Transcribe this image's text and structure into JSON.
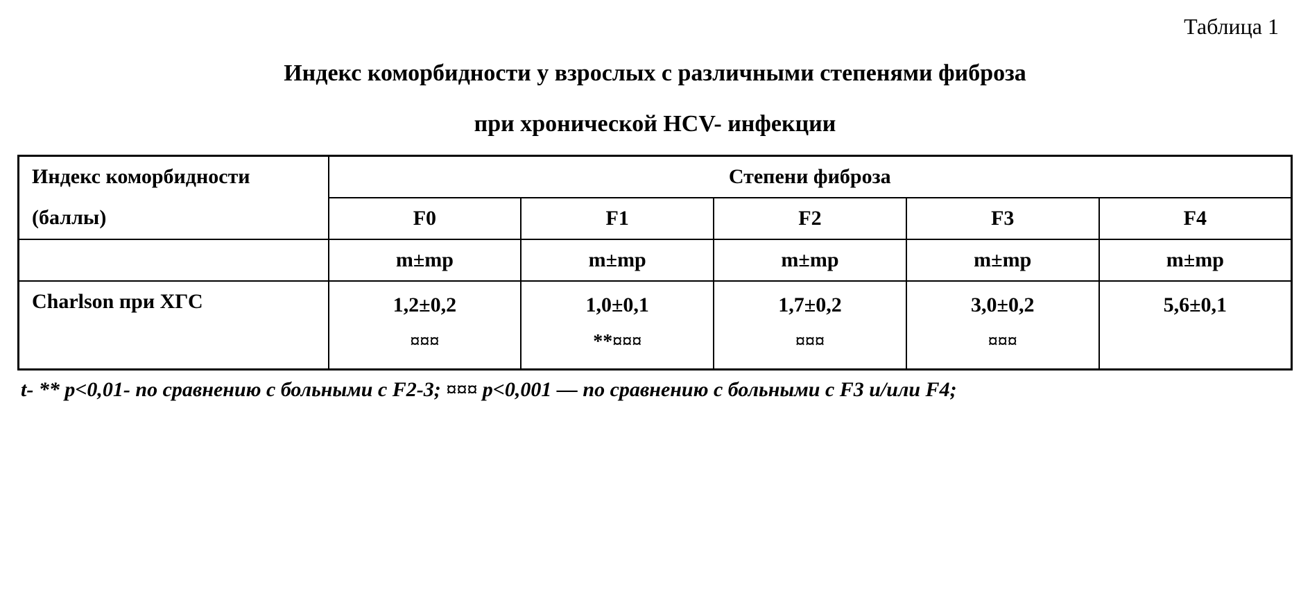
{
  "table_number": "Таблица 1",
  "title": {
    "line1": "Индекс коморбидности у взрослых с различными степенями фиброза",
    "line2": "при хронической HCV- инфекции"
  },
  "table": {
    "index_header": {
      "line1": "Индекс коморбидности",
      "line2": "(баллы)"
    },
    "stage_header": "Степени фиброза",
    "columns": [
      "F0",
      "F1",
      "F2",
      "F3",
      "F4"
    ],
    "subheader": [
      "m±mp",
      "m±mp",
      "m±mp",
      "m±mp",
      "m±mp"
    ],
    "row_label": "Charlson при ХГС",
    "data": [
      {
        "value": "1,2±0,2",
        "marker": "¤¤¤"
      },
      {
        "value": "1,0±0,1",
        "marker": "**¤¤¤"
      },
      {
        "value": "1,7±0,2",
        "marker": "¤¤¤"
      },
      {
        "value": "3,0±0,2",
        "marker": "¤¤¤"
      },
      {
        "value": "5,6±0,1",
        "marker": ""
      }
    ]
  },
  "footnote": "t- ** p<0,01- по сравнению с больными с F2-3; ¤¤¤ p<0,001 — по сравнению с больными с F3 и/или F4;",
  "styling": {
    "background_color": "#ffffff",
    "text_color": "#000000",
    "border_color": "#000000",
    "font_family": "Times New Roman",
    "title_fontsize": 34,
    "table_number_fontsize": 32,
    "cell_fontsize": 30,
    "footnote_fontsize": 30,
    "border_width_outer": 3,
    "border_width_inner": 2
  }
}
